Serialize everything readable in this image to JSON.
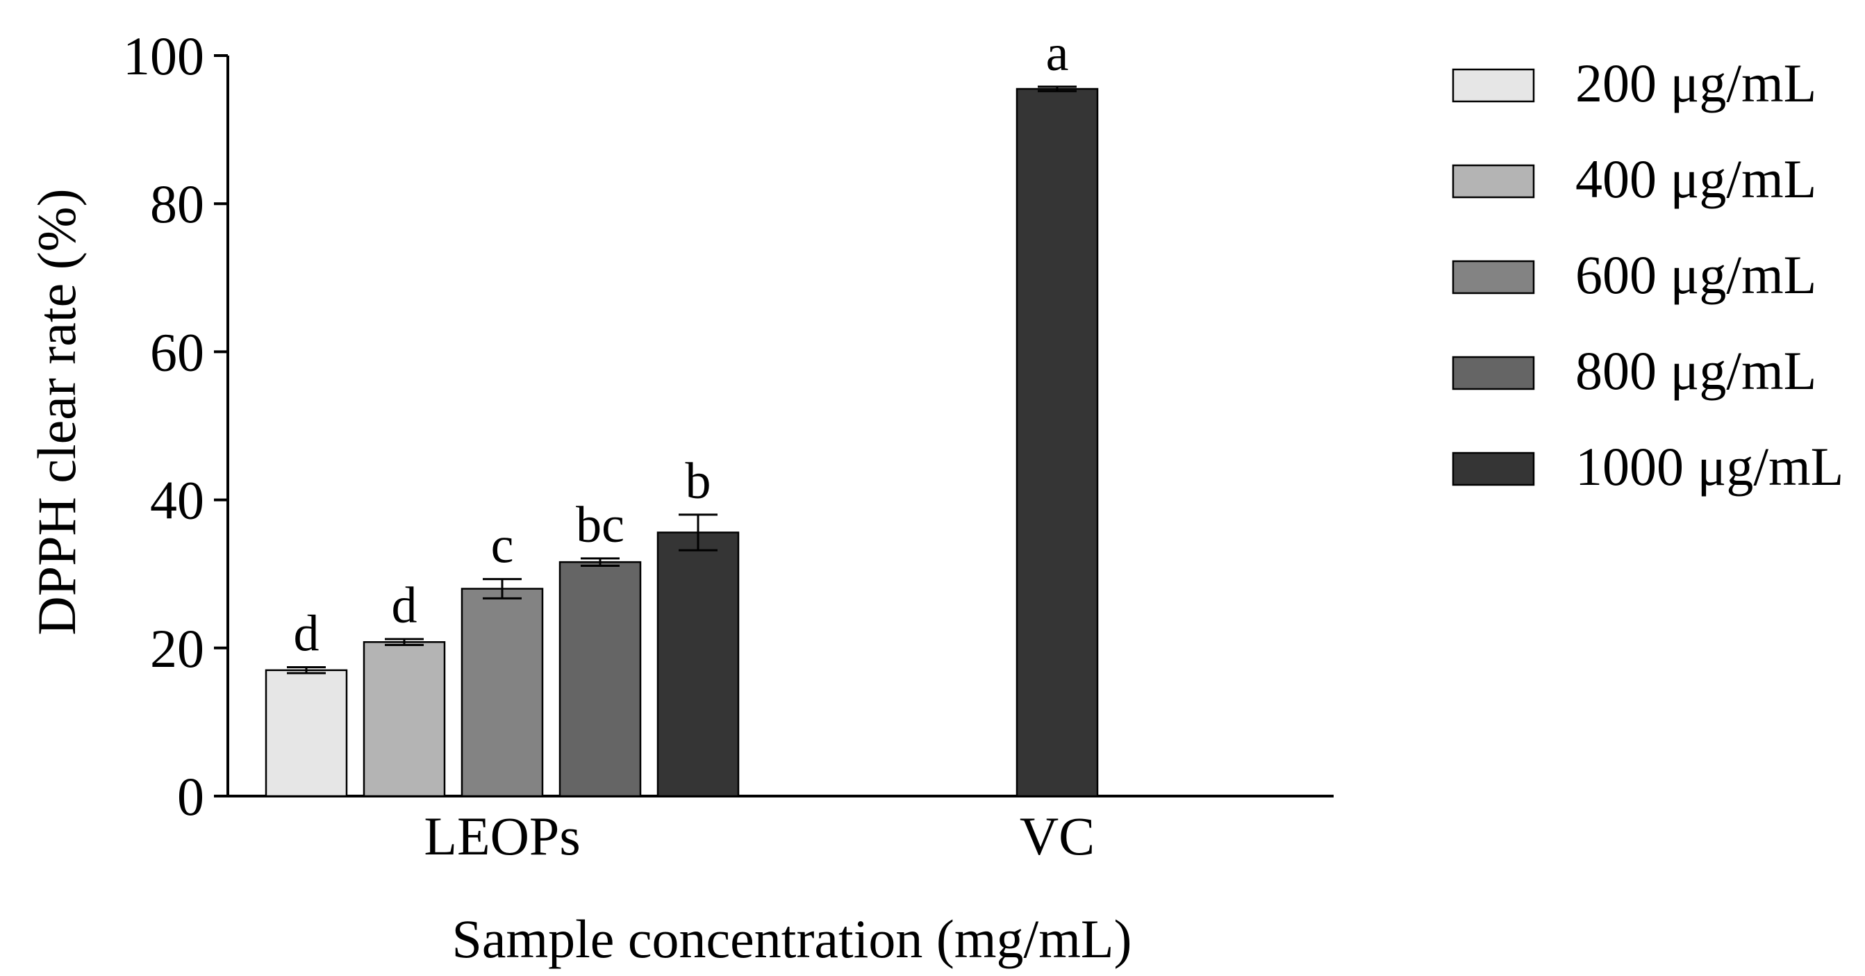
{
  "chart_data": {
    "type": "bar",
    "title": "",
    "xlabel": "Sample concentration (mg/mL)",
    "ylabel": "DPPH clear rate (%)",
    "ylim": [
      0,
      100
    ],
    "yticks": [
      0,
      20,
      40,
      60,
      80,
      100
    ],
    "grid": false,
    "legend_position": "right",
    "categories": [
      "LEOPs",
      "VC"
    ],
    "series": [
      {
        "name": "200 μg/mL",
        "color": "#e6e6e6",
        "values": [
          17.0,
          null
        ],
        "errors": [
          0.4,
          null
        ],
        "letters": [
          "d",
          null
        ]
      },
      {
        "name": "400 μg/mL",
        "color": "#b4b4b4",
        "values": [
          20.8,
          null
        ],
        "errors": [
          0.4,
          null
        ],
        "letters": [
          "d",
          null
        ]
      },
      {
        "name": "600 μg/mL",
        "color": "#838383",
        "values": [
          28.0,
          null
        ],
        "errors": [
          1.3,
          null
        ],
        "letters": [
          "c",
          null
        ]
      },
      {
        "name": "800 μg/mL",
        "color": "#656565",
        "values": [
          31.6,
          null
        ],
        "errors": [
          0.5,
          null
        ],
        "letters": [
          "bc",
          null
        ]
      },
      {
        "name": "1000 μg/mL",
        "color": "#353535",
        "values": [
          35.6,
          95.5
        ],
        "errors": [
          2.4,
          0.3
        ],
        "letters": [
          "b",
          "a"
        ]
      }
    ]
  }
}
